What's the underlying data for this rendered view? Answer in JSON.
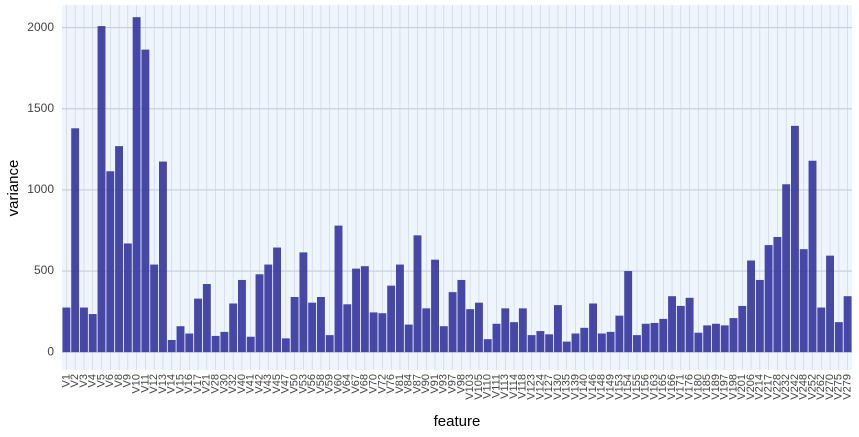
{
  "chart_data": {
    "type": "bar",
    "x_label": "feature",
    "y_label": "variance",
    "categories": [
      "V1",
      "V2",
      "V3",
      "V4",
      "V5",
      "V6",
      "V8",
      "V9",
      "V10",
      "V11",
      "V12",
      "V13",
      "V14",
      "V15",
      "V16",
      "V17",
      "V21",
      "V28",
      "V30",
      "V32",
      "V40",
      "V41",
      "V42",
      "V43",
      "V45",
      "V47",
      "V50",
      "V53",
      "V56",
      "V58",
      "V59",
      "V60",
      "V64",
      "V67",
      "V68",
      "V70",
      "V72",
      "V76",
      "V81",
      "V84",
      "V87",
      "V90",
      "V91",
      "V93",
      "V97",
      "V98",
      "V103",
      "V105",
      "V110",
      "V111",
      "V113",
      "V114",
      "V118",
      "V123",
      "V124",
      "V127",
      "V130",
      "V135",
      "V139",
      "V140",
      "V146",
      "V148",
      "V149",
      "V153",
      "V154",
      "V155",
      "V156",
      "V163",
      "V165",
      "V166",
      "V171",
      "V176",
      "V180",
      "V185",
      "V189",
      "V197",
      "V198",
      "V201",
      "V206",
      "V214",
      "V217",
      "V228",
      "V232",
      "V242",
      "V248",
      "V252",
      "V262",
      "V270",
      "V275",
      "V279"
    ],
    "values": [
      275,
      1380,
      275,
      235,
      2010,
      1115,
      1270,
      670,
      2065,
      1865,
      540,
      1175,
      75,
      160,
      115,
      330,
      420,
      100,
      125,
      300,
      445,
      95,
      480,
      540,
      645,
      85,
      340,
      615,
      305,
      340,
      105,
      780,
      295,
      515,
      530,
      245,
      240,
      410,
      540,
      170,
      720,
      270,
      570,
      160,
      370,
      445,
      265,
      305,
      80,
      175,
      270,
      185,
      270,
      105,
      130,
      110,
      290,
      65,
      115,
      150,
      300,
      115,
      125,
      225,
      500,
      105,
      175,
      180,
      205,
      345,
      285,
      335,
      120,
      165,
      175,
      165,
      210,
      285,
      565,
      445,
      660,
      710,
      1035,
      1395,
      635,
      1180,
      275,
      595,
      185,
      345
    ],
    "color": "#34349c",
    "ylim": [
      -110,
      2140
    ],
    "yticks": [
      0,
      500,
      1000,
      1500,
      2000
    ],
    "grid": true
  }
}
